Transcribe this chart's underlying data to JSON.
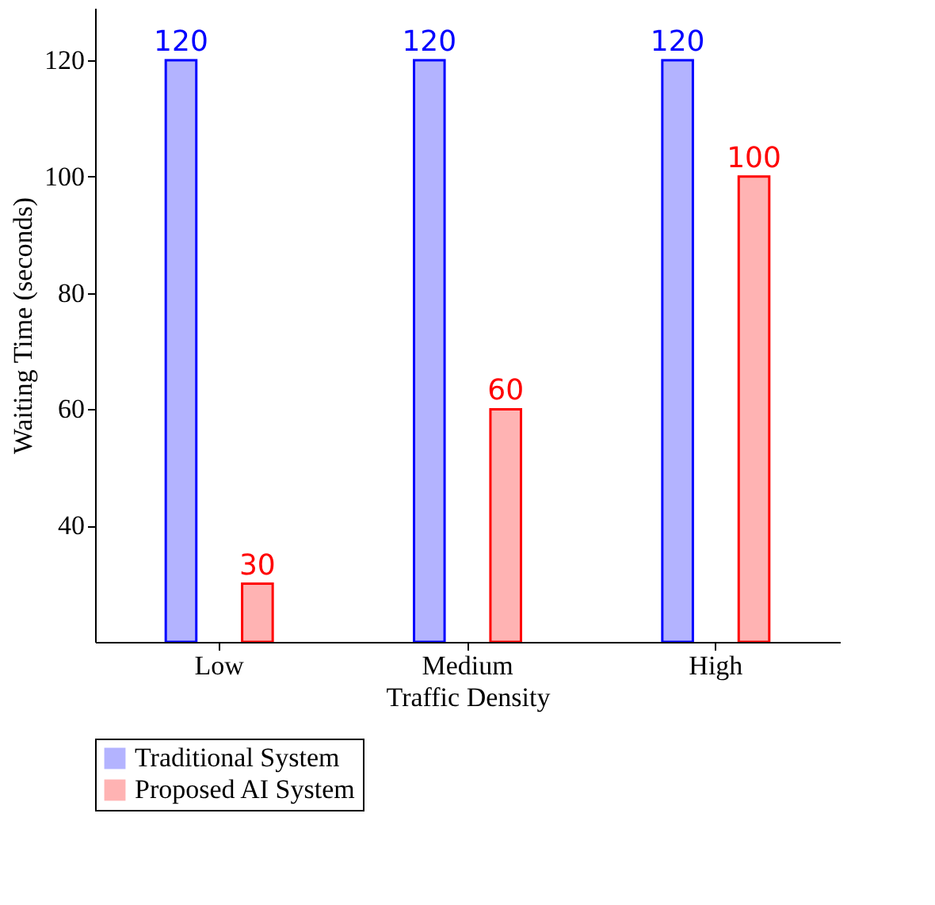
{
  "chart_data": {
    "type": "bar",
    "xlabel": "Traffic Density",
    "ylabel": "Waiting Time (seconds)",
    "categories": [
      "Low",
      "Medium",
      "High"
    ],
    "series": [
      {
        "name": "Traditional System",
        "color": "#b3b3ff",
        "values": [
          120,
          120,
          120
        ]
      },
      {
        "name": "Proposed AI System",
        "color": "#ffb3b3",
        "values": [
          30,
          60,
          100
        ]
      }
    ],
    "ylim": [
      20,
      129
    ],
    "yticks": [
      40,
      60,
      80,
      100,
      120
    ],
    "data_labels": true,
    "grid": false,
    "legend": "bottom"
  }
}
